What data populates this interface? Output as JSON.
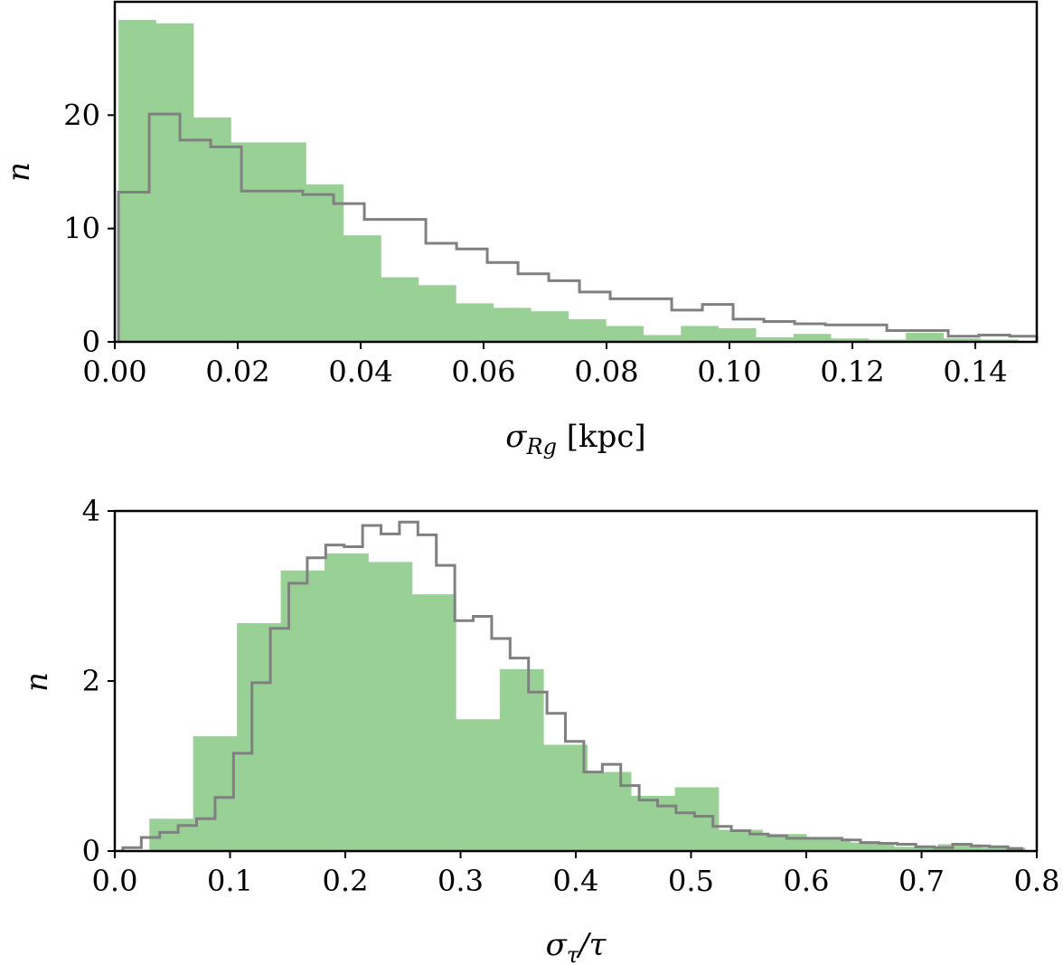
{
  "chart_data": [
    {
      "type": "bar",
      "title": "",
      "xlabel": "σ_Rg [kpc]",
      "xlabel_main": "σ",
      "xlabel_sub": "Rg",
      "xlabel_unit": " [kpc]",
      "ylabel": "n",
      "xlim": [
        0.0,
        0.15
      ],
      "ylim": [
        0,
        30
      ],
      "xticks": [
        0.0,
        0.02,
        0.04,
        0.06,
        0.08,
        0.1,
        0.12,
        0.14
      ],
      "xtick_labels": [
        "0.00",
        "0.02",
        "0.04",
        "0.06",
        "0.08",
        "0.10",
        "0.12",
        "0.14"
      ],
      "yticks": [
        0,
        10,
        20
      ],
      "ytick_labels": [
        "0",
        "10",
        "20"
      ],
      "series": [
        {
          "name": "filled histogram",
          "color": "#98d096",
          "bin_edges": [
            0.0006,
            0.0067,
            0.0128,
            0.0189,
            0.025,
            0.0311,
            0.0372,
            0.0433,
            0.0494,
            0.0555,
            0.0616,
            0.0677,
            0.0738,
            0.0799,
            0.086,
            0.0921,
            0.0982,
            0.1043,
            0.1104,
            0.1165,
            0.1226,
            0.1287,
            0.1348,
            0.1409,
            0.147
          ],
          "values": [
            28.4,
            28.1,
            19.8,
            17.6,
            17.6,
            13.9,
            9.4,
            5.7,
            5.0,
            3.4,
            3.0,
            2.7,
            2.0,
            1.4,
            0.6,
            1.4,
            1.2,
            0.4,
            0.7,
            0.3,
            0.2,
            0.8,
            0.3,
            0.2
          ]
        },
        {
          "name": "step histogram",
          "color": "#808080",
          "bin_edges": [
            0.0006,
            0.0056,
            0.0106,
            0.0156,
            0.0206,
            0.0256,
            0.0306,
            0.0356,
            0.0406,
            0.0456,
            0.0506,
            0.0556,
            0.0606,
            0.0656,
            0.0706,
            0.0756,
            0.0806,
            0.0856,
            0.0906,
            0.0956,
            0.1006,
            0.1056,
            0.1106,
            0.1156,
            0.1206,
            0.1256,
            0.1306,
            0.1356,
            0.1406,
            0.1456,
            0.15
          ],
          "values": [
            13.2,
            20.1,
            17.8,
            17.2,
            13.3,
            13.3,
            13.0,
            12.2,
            10.8,
            10.8,
            8.7,
            8.2,
            7.0,
            6.0,
            5.4,
            4.4,
            3.8,
            3.8,
            2.8,
            3.3,
            2.0,
            1.8,
            1.6,
            1.5,
            1.5,
            1.0,
            1.0,
            0.5,
            0.6,
            0.5
          ]
        }
      ]
    },
    {
      "type": "bar",
      "title": "",
      "xlabel": "σ_τ/τ",
      "xlabel_main": "σ",
      "xlabel_sub": "τ",
      "xlabel_unit": "/τ",
      "ylabel": "n",
      "xlim": [
        0.0,
        0.8
      ],
      "ylim": [
        0,
        4.0
      ],
      "xticks": [
        0.0,
        0.1,
        0.2,
        0.3,
        0.4,
        0.5,
        0.6,
        0.7,
        0.8
      ],
      "xtick_labels": [
        "0.0",
        "0.1",
        "0.2",
        "0.3",
        "0.4",
        "0.5",
        "0.6",
        "0.7",
        "0.8"
      ],
      "yticks": [
        0,
        2,
        4
      ],
      "ytick_labels": [
        "0",
        "2",
        "4"
      ],
      "series": [
        {
          "name": "filled histogram",
          "color": "#98d096",
          "bin_edges": [
            0.03,
            0.068,
            0.106,
            0.144,
            0.182,
            0.22,
            0.258,
            0.296,
            0.334,
            0.372,
            0.41,
            0.448,
            0.486,
            0.524,
            0.562,
            0.6,
            0.638,
            0.676,
            0.714,
            0.752,
            0.79
          ],
          "values": [
            0.38,
            1.35,
            2.68,
            3.3,
            3.5,
            3.4,
            3.02,
            1.55,
            2.14,
            1.25,
            0.93,
            0.65,
            0.75,
            0.25,
            0.2,
            0.15,
            0.1,
            0.05,
            0.08,
            0.04
          ]
        },
        {
          "name": "step histogram",
          "color": "#808080",
          "bin_edges": [
            0.007,
            0.023,
            0.039,
            0.055,
            0.071,
            0.087,
            0.103,
            0.119,
            0.135,
            0.151,
            0.167,
            0.183,
            0.199,
            0.215,
            0.231,
            0.247,
            0.263,
            0.279,
            0.295,
            0.311,
            0.327,
            0.343,
            0.359,
            0.375,
            0.391,
            0.407,
            0.423,
            0.439,
            0.455,
            0.471,
            0.487,
            0.503,
            0.519,
            0.535,
            0.551,
            0.567,
            0.583,
            0.599,
            0.615,
            0.631,
            0.647,
            0.663,
            0.679,
            0.695,
            0.711,
            0.727,
            0.743,
            0.759,
            0.775,
            0.787
          ],
          "values": [
            0.04,
            0.16,
            0.22,
            0.3,
            0.38,
            0.63,
            1.15,
            1.98,
            2.62,
            3.15,
            3.45,
            3.6,
            3.58,
            3.83,
            3.73,
            3.87,
            3.72,
            3.36,
            2.71,
            2.76,
            2.5,
            2.27,
            1.87,
            1.62,
            1.29,
            0.93,
            1.02,
            0.77,
            0.6,
            0.53,
            0.45,
            0.41,
            0.29,
            0.24,
            0.2,
            0.18,
            0.15,
            0.15,
            0.15,
            0.13,
            0.1,
            0.09,
            0.08,
            0.05,
            0.04,
            0.08,
            0.06,
            0.05,
            0.03
          ]
        }
      ]
    }
  ]
}
